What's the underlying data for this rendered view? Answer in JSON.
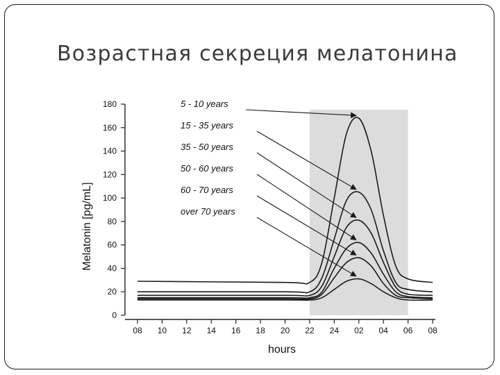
{
  "slide": {
    "title": "Возрастная секреция мелатонина"
  },
  "chart_data": {
    "type": "line",
    "xlabel": "hours",
    "ylabel": "Melatonin [pg/mL]",
    "x_ticks": [
      "08",
      "10",
      "12",
      "14",
      "16",
      "18",
      "20",
      "22",
      "24",
      "02",
      "04",
      "06",
      "08"
    ],
    "y_ticks": [
      "0",
      "20",
      "40",
      "60",
      "80",
      "100",
      "120",
      "140",
      "160",
      "180"
    ],
    "ylim": [
      0,
      180
    ],
    "shaded_band": {
      "from_hour": 22,
      "to_hour": 30,
      "color": "#dcdcdc"
    },
    "grid": false,
    "series": [
      {
        "name": "5 - 10 years",
        "x": [
          8,
          20,
          22,
          23,
          24,
          25,
          26,
          27,
          28,
          29,
          30,
          32
        ],
        "y": [
          29,
          28,
          28,
          45,
          100,
          155,
          168,
          140,
          85,
          42,
          31,
          28
        ]
      },
      {
        "name": "15 - 35 years",
        "x": [
          8,
          20,
          22,
          23,
          24,
          25,
          26,
          27,
          28,
          29,
          30,
          32
        ],
        "y": [
          20,
          20,
          20,
          32,
          65,
          98,
          105,
          90,
          55,
          28,
          22,
          20
        ]
      },
      {
        "name": "35 - 50 years",
        "x": [
          8,
          20,
          22,
          23,
          24,
          25,
          26,
          27,
          28,
          29,
          30,
          32
        ],
        "y": [
          17,
          17,
          17,
          25,
          50,
          75,
          81,
          70,
          45,
          24,
          18,
          17
        ]
      },
      {
        "name": "50 - 60 years",
        "x": [
          8,
          20,
          22,
          23,
          24,
          25,
          26,
          27,
          28,
          29,
          30,
          32
        ],
        "y": [
          15,
          15,
          15,
          20,
          40,
          57,
          62,
          53,
          35,
          20,
          16,
          15
        ]
      },
      {
        "name": "60 - 70 years",
        "x": [
          8,
          20,
          22,
          23,
          24,
          25,
          26,
          27,
          28,
          29,
          30,
          32
        ],
        "y": [
          14,
          14,
          14,
          18,
          32,
          45,
          49,
          42,
          27,
          17,
          15,
          14
        ]
      },
      {
        "name": "over 70 years",
        "x": [
          8,
          20,
          22,
          23,
          24,
          25,
          26,
          27,
          28,
          29,
          30,
          32
        ],
        "y": [
          13,
          13,
          13,
          15,
          22,
          29,
          31,
          27,
          20,
          15,
          13,
          13
        ]
      }
    ]
  }
}
